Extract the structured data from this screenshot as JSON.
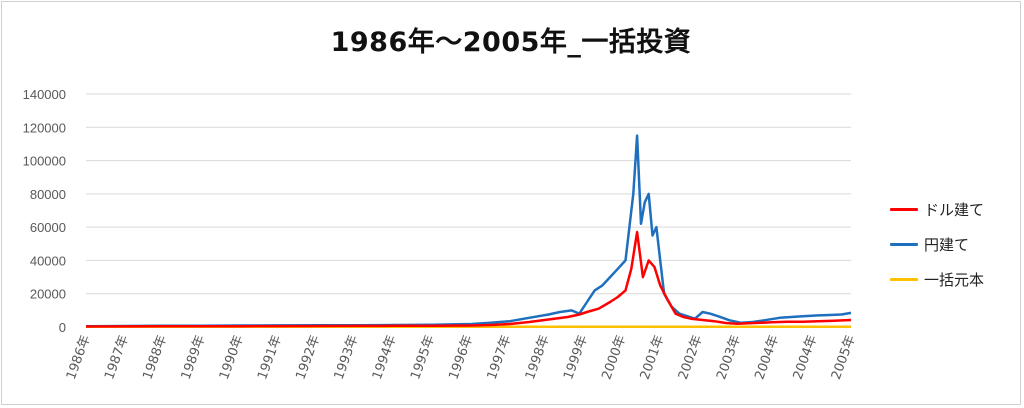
{
  "chart_data": {
    "type": "line",
    "title": "1986年～2005年_一括投資",
    "ylim": [
      0,
      140000
    ],
    "yticks": [
      "0",
      "20000",
      "40000",
      "60000",
      "80000",
      "100000",
      "120000",
      "140000"
    ],
    "x_tick_labels": [
      "1986年",
      "1987年",
      "1988年",
      "1989年",
      "1990年",
      "1991年",
      "1992年",
      "1993年",
      "1994年",
      "1995年",
      "1996年",
      "1997年",
      "1998年",
      "1999年",
      "2000年",
      "2001年",
      "2002年",
      "2003年",
      "2004年",
      "2004年",
      "2005年"
    ],
    "x_range": [
      1986.0,
      2005.85
    ],
    "grid": true,
    "legend_position": "right",
    "series": [
      {
        "name": "ドル建て",
        "color": "#ff0000",
        "x": [
          1986.0,
          1987.0,
          1988.0,
          1989.0,
          1990.0,
          1991.0,
          1992.0,
          1993.0,
          1994.0,
          1995.0,
          1996.0,
          1996.5,
          1997.0,
          1997.5,
          1998.0,
          1998.5,
          1998.8,
          1999.0,
          1999.3,
          1999.6,
          1999.8,
          2000.0,
          2000.15,
          2000.3,
          2000.45,
          2000.6,
          2000.75,
          2000.9,
          2001.1,
          2001.3,
          2001.5,
          2001.7,
          2002.0,
          2002.3,
          2002.6,
          2002.9,
          2003.2,
          2003.5,
          2003.8,
          2004.2,
          2004.6,
          2005.0,
          2005.4,
          2005.85
        ],
        "y": [
          300,
          350,
          400,
          450,
          500,
          550,
          600,
          650,
          700,
          750,
          900,
          1200,
          1800,
          3000,
          4500,
          6000,
          7500,
          9000,
          11000,
          15000,
          18000,
          22000,
          35000,
          57000,
          30000,
          40000,
          36000,
          25000,
          16000,
          8000,
          6000,
          5000,
          4200,
          3500,
          2400,
          2000,
          2200,
          2500,
          2800,
          3200,
          3200,
          3400,
          3800,
          4200
        ]
      },
      {
        "name": "円建て",
        "color": "#1f6fbf",
        "x": [
          1986.0,
          1987.0,
          1988.0,
          1989.0,
          1990.0,
          1991.0,
          1992.0,
          1993.0,
          1994.0,
          1995.0,
          1996.0,
          1996.5,
          1997.0,
          1997.5,
          1998.0,
          1998.3,
          1998.6,
          1998.8,
          1999.0,
          1999.2,
          1999.4,
          1999.6,
          1999.8,
          2000.0,
          2000.1,
          2000.2,
          2000.3,
          2000.4,
          2000.5,
          2000.6,
          2000.7,
          2000.8,
          2000.9,
          2001.0,
          2001.2,
          2001.4,
          2001.6,
          2001.8,
          2002.0,
          2002.2,
          2002.4,
          2002.7,
          2003.0,
          2003.3,
          2003.6,
          2004.0,
          2004.3,
          2004.6,
          2005.0,
          2005.3,
          2005.6,
          2005.85
        ],
        "y": [
          500,
          600,
          700,
          800,
          900,
          950,
          1000,
          1100,
          1200,
          1400,
          1800,
          2500,
          3500,
          5500,
          7500,
          9000,
          10000,
          8000,
          15000,
          22000,
          25000,
          30000,
          35000,
          40000,
          60000,
          80000,
          115000,
          62000,
          75000,
          80000,
          55000,
          60000,
          40000,
          20000,
          12000,
          8000,
          6500,
          5000,
          9000,
          8000,
          6500,
          4000,
          2500,
          3000,
          4000,
          5500,
          6000,
          6500,
          7000,
          7200,
          7500,
          8500
        ]
      },
      {
        "name": "一括元本",
        "color": "#ffc000",
        "x": [
          1986.0,
          2005.85
        ],
        "y": [
          100,
          100
        ]
      }
    ]
  }
}
